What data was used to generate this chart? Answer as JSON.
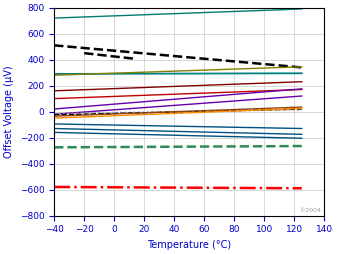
{
  "xlabel": "Temperature (°C)",
  "ylabel": "Offset Voltage (µV)",
  "xlim": [
    -40,
    140
  ],
  "ylim": [
    -800,
    800
  ],
  "xticks": [
    -40,
    -20,
    0,
    20,
    40,
    60,
    80,
    100,
    120,
    140
  ],
  "yticks": [
    -800,
    -600,
    -400,
    -200,
    0,
    200,
    400,
    600,
    800
  ],
  "copyright": "©2004",
  "lines": [
    {
      "color": "#007B6E",
      "ls": "-",
      "lw": 1.0,
      "x0": -40,
      "x1": 125,
      "y0": 720,
      "y1": 790
    },
    {
      "color": "#000000",
      "ls": "--",
      "lw": 1.8,
      "x0": -40,
      "x1": 125,
      "y0": 510,
      "y1": 340
    },
    {
      "color": "#000000",
      "ls": "--",
      "lw": 1.8,
      "x0": -20,
      "x1": 15,
      "y0": 450,
      "y1": 405
    },
    {
      "color": "#008080",
      "ls": "-",
      "lw": 1.3,
      "x0": -40,
      "x1": 125,
      "y0": 290,
      "y1": 295
    },
    {
      "color": "#808000",
      "ls": "-",
      "lw": 1.0,
      "x0": -40,
      "x1": 125,
      "y0": 280,
      "y1": 345
    },
    {
      "color": "#800000",
      "ls": "-",
      "lw": 1.0,
      "x0": -40,
      "x1": 125,
      "y0": 160,
      "y1": 230
    },
    {
      "color": "#C00000",
      "ls": "-",
      "lw": 1.0,
      "x0": -40,
      "x1": 125,
      "y0": 100,
      "y1": 170
    },
    {
      "color": "#6600AA",
      "ls": "-",
      "lw": 1.0,
      "x0": -40,
      "x1": 125,
      "y0": 20,
      "y1": 175
    },
    {
      "color": "#6600AA",
      "ls": "-",
      "lw": 1.0,
      "x0": -40,
      "x1": 125,
      "y0": -20,
      "y1": 120
    },
    {
      "color": "#A0A0A0",
      "ls": ":",
      "lw": 1.2,
      "x0": -40,
      "x1": 125,
      "y0": -15,
      "y1": 15
    },
    {
      "color": "#000000",
      "ls": "--",
      "lw": 1.0,
      "x0": -40,
      "x1": 125,
      "y0": -25,
      "y1": 20
    },
    {
      "color": "#8B4513",
      "ls": "-",
      "lw": 1.0,
      "x0": -40,
      "x1": 125,
      "y0": -35,
      "y1": 35
    },
    {
      "color": "#FF8C00",
      "ls": "-",
      "lw": 1.0,
      "x0": -40,
      "x1": 125,
      "y0": -50,
      "y1": 25
    },
    {
      "color": "#005082",
      "ls": "-",
      "lw": 1.0,
      "x0": -40,
      "x1": 125,
      "y0": -95,
      "y1": -130
    },
    {
      "color": "#005082",
      "ls": "-",
      "lw": 1.0,
      "x0": -40,
      "x1": 125,
      "y0": -130,
      "y1": -175
    },
    {
      "color": "#005082",
      "ls": "-",
      "lw": 1.0,
      "x0": -40,
      "x1": 125,
      "y0": -160,
      "y1": -205
    },
    {
      "color": "#2E8B57",
      "ls": "--",
      "lw": 1.8,
      "x0": -40,
      "x1": 125,
      "y0": -275,
      "y1": -265
    },
    {
      "color": "#FF0000",
      "ls": "-.",
      "lw": 1.8,
      "x0": -40,
      "x1": 125,
      "y0": -580,
      "y1": -590
    }
  ]
}
